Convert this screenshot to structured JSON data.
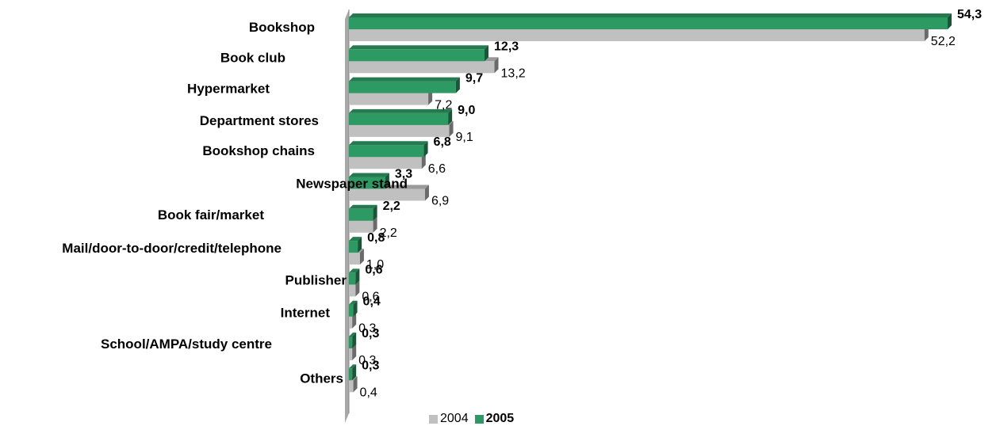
{
  "chart_data": {
    "type": "bar",
    "orientation": "horizontal",
    "categories": [
      "Bookshop",
      "Book club",
      "Hypermarket",
      "Department stores",
      "Bookshop chains",
      "Newspaper stand",
      "Book fair/market",
      "Mail/door-to-door/credit/telephone",
      "Publisher",
      "Internet",
      "School/AMPA/study centre",
      "Others"
    ],
    "series": [
      {
        "name": "2005",
        "values": [
          54.3,
          12.3,
          9.7,
          9.0,
          6.8,
          3.3,
          2.2,
          0.8,
          0.6,
          0.4,
          0.3,
          0.3
        ],
        "labels": [
          "54,3",
          "12,3",
          "9,7",
          "9,0",
          "6,8",
          "3,3",
          "2,2",
          "0,8",
          "0,6",
          "0,4",
          "0,3",
          "0,3"
        ],
        "color": "#2e9a63",
        "label_weight": "bold"
      },
      {
        "name": "2004",
        "values": [
          52.2,
          13.2,
          7.2,
          9.1,
          6.6,
          6.9,
          2.2,
          1.0,
          0.6,
          0.3,
          0.3,
          0.4
        ],
        "labels": [
          "52,2",
          "13,2",
          "7,2",
          "9,1",
          "6,6",
          "6,9",
          "2,2",
          "1,0",
          "0,6",
          "0,3",
          "0,3",
          "0,4"
        ],
        "color": "#c0c0c0",
        "label_weight": "normal"
      }
    ],
    "xlim": [
      0,
      54.3
    ],
    "grid": false,
    "legend_position": "bottom",
    "title": "",
    "xlabel": "",
    "ylabel": ""
  },
  "legend": {
    "label_2004": "2004",
    "label_2005": "2005",
    "color_2004": "#c0c0c0",
    "color_2005": "#2e9a63"
  }
}
